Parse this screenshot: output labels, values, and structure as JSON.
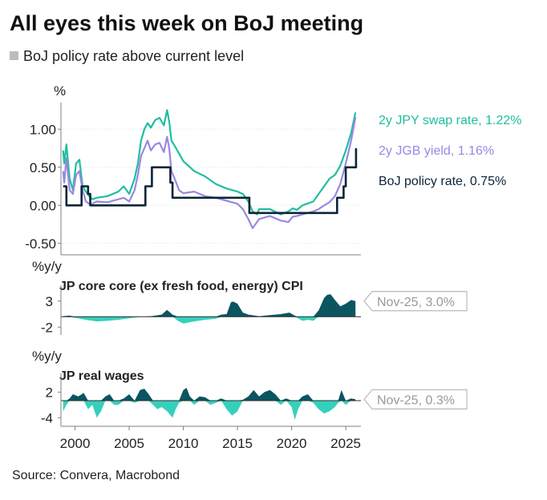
{
  "title": "All eyes this week on BoJ meeting",
  "subtitle": "BoJ policy rate above current level",
  "source": "Source: Convera, Macrobond",
  "colors": {
    "swap": "#1ebf9f",
    "jgb": "#9b87e3",
    "policy": "#0d2438",
    "area": "#0a5560",
    "area_neg": "#35d0bc",
    "shade": "#d3d3d3",
    "callout_border": "#b9b9b9",
    "callout_text": "#999999",
    "axis": "#7f7f7f"
  },
  "chart_data": [
    {
      "type": "line",
      "ylabel": "%",
      "ylim": [
        -0.65,
        1.35
      ],
      "yticks": [
        "1.00",
        "0.50",
        "0.00",
        "-0.50"
      ],
      "ytick_values": [
        1.0,
        0.5,
        0.0,
        -0.5
      ],
      "xlim": [
        1998.7,
        2026.4
      ],
      "series": [
        {
          "name": "2y JPY swap rate, 1.22%",
          "color_key": "swap",
          "x": [
            1998.9,
            1999.0,
            1999.2,
            1999.5,
            1999.8,
            2000.1,
            2000.4,
            2000.7,
            2001.0,
            2001.3,
            2001.6,
            2002,
            2003,
            2004,
            2004.5,
            2005,
            2005.5,
            2005.8,
            2006.1,
            2006.4,
            2006.7,
            2007.0,
            2007.4,
            2007.8,
            2008.2,
            2008.5,
            2008.7,
            2008.9,
            2009.2,
            2009.6,
            2010,
            2011,
            2012,
            2013,
            2014,
            2015,
            2015.5,
            2016.0,
            2016.4,
            2016.8,
            2017,
            2018,
            2019,
            2019.7,
            2020.1,
            2020.5,
            2021,
            2022.0,
            2022.5,
            2023.0,
            2023.5,
            2024.0,
            2024.5,
            2025.0,
            2025.5,
            2025.9
          ],
          "y": [
            0.72,
            0.55,
            0.8,
            0.35,
            0.2,
            0.55,
            0.6,
            0.25,
            0.18,
            0.12,
            0.08,
            0.1,
            0.12,
            0.18,
            0.25,
            0.15,
            0.35,
            0.55,
            0.85,
            1.0,
            1.08,
            1.02,
            1.12,
            1.15,
            1.05,
            1.25,
            1.1,
            0.85,
            0.78,
            0.68,
            0.58,
            0.45,
            0.38,
            0.28,
            0.22,
            0.18,
            0.15,
            0.05,
            -0.08,
            -0.12,
            -0.05,
            -0.05,
            -0.12,
            -0.08,
            -0.04,
            -0.06,
            0.0,
            0.05,
            0.15,
            0.25,
            0.35,
            0.4,
            0.52,
            0.72,
            0.95,
            1.22
          ]
        },
        {
          "name": "2y JGB yield, 1.16%",
          "color_key": "jgb",
          "x": [
            1998.9,
            1999.0,
            1999.2,
            1999.5,
            1999.8,
            2000.1,
            2000.4,
            2000.7,
            2001.0,
            2001.3,
            2001.6,
            2002,
            2003,
            2004,
            2004.5,
            2005,
            2005.5,
            2005.8,
            2006.1,
            2006.4,
            2006.7,
            2007.0,
            2007.4,
            2007.8,
            2008.2,
            2008.5,
            2008.7,
            2008.9,
            2009.2,
            2009.6,
            2010,
            2011,
            2012,
            2013,
            2014,
            2015,
            2015.5,
            2016.0,
            2016.4,
            2016.8,
            2017,
            2018,
            2019,
            2019.7,
            2020.1,
            2020.5,
            2021,
            2022.0,
            2022.5,
            2023.0,
            2023.5,
            2024.0,
            2024.5,
            2025.0,
            2025.5,
            2025.9
          ],
          "y": [
            0.45,
            0.3,
            0.62,
            0.2,
            0.15,
            0.4,
            0.45,
            0.2,
            0.05,
            0.02,
            0.02,
            0.05,
            0.04,
            0.08,
            0.1,
            0.05,
            0.2,
            0.4,
            0.65,
            0.75,
            0.85,
            0.72,
            0.8,
            0.82,
            0.7,
            0.9,
            0.75,
            0.45,
            0.35,
            0.2,
            0.16,
            0.18,
            0.12,
            0.1,
            0.06,
            0.02,
            -0.05,
            -0.18,
            -0.3,
            -0.22,
            -0.18,
            -0.14,
            -0.2,
            -0.22,
            -0.15,
            -0.14,
            -0.12,
            -0.08,
            -0.05,
            0.0,
            0.04,
            0.12,
            0.28,
            0.55,
            0.85,
            1.16
          ]
        },
        {
          "name": "BoJ policy rate, 0.75%",
          "color_key": "policy",
          "step": true,
          "x": [
            1998.9,
            1999.2,
            2000.6,
            2001.2,
            2001.4,
            2001.8,
            2006.5,
            2007.1,
            2008.8,
            2009.0,
            2015.9,
            2016.1,
            2024.2,
            2024.5,
            2024.8,
            2025.0,
            2025.85,
            2025.95
          ],
          "y": [
            0.25,
            0.0,
            0.25,
            0.15,
            0.0,
            0.0,
            0.25,
            0.5,
            0.3,
            0.1,
            0.1,
            -0.1,
            0.1,
            0.1,
            0.25,
            0.5,
            0.5,
            0.75
          ]
        }
      ],
      "shaded_region": {
        "from": 0.75,
        "to": 1.35,
        "label": "BoJ policy rate above current level"
      }
    },
    {
      "type": "area",
      "title": "JP core core (ex fresh food, energy) CPI",
      "ylabel": "%y/y",
      "ylim": [
        -3.5,
        4.5
      ],
      "yticks": [
        "3",
        "-2"
      ],
      "ytick_values": [
        3,
        -2
      ],
      "baseline": 0,
      "callout": "Nov-25, 3.0%",
      "x": [
        1998.9,
        1999.5,
        2000,
        2001,
        2002,
        2003,
        2004,
        2005,
        2006,
        2007,
        2008,
        2008.5,
        2009,
        2009.5,
        2010,
        2011,
        2012,
        2013,
        2013.5,
        2014,
        2014.4,
        2014.6,
        2015,
        2015.5,
        2016,
        2017,
        2018,
        2019,
        2019.8,
        2020.2,
        2020.5,
        2021,
        2021.5,
        2022,
        2022.5,
        2023,
        2023.3,
        2023.6,
        2024,
        2024.5,
        2025,
        2025.5,
        2025.9
      ],
      "values": [
        0.1,
        0.2,
        -0.2,
        -0.6,
        -0.9,
        -0.8,
        -0.6,
        -0.3,
        0.0,
        0.1,
        0.4,
        1.3,
        0.4,
        -0.8,
        -1.3,
        -0.9,
        -0.6,
        -0.4,
        0.4,
        0.5,
        2.8,
        2.9,
        2.5,
        0.8,
        0.4,
        0.1,
        0.3,
        0.5,
        0.8,
        0.3,
        -0.2,
        -0.8,
        -0.6,
        -0.8,
        1.2,
        3.6,
        4.2,
        4.3,
        3.2,
        2.0,
        2.5,
        3.2,
        3.0
      ]
    },
    {
      "type": "area",
      "title": "JP real wages",
      "ylabel": "%y/y",
      "ylim": [
        -6.0,
        4.5
      ],
      "yticks": [
        "2",
        "-4"
      ],
      "ytick_values": [
        2,
        -4
      ],
      "baseline": 0,
      "callout": "Nov-25, 0.3%",
      "x": [
        1998.9,
        1999.2,
        1999.5,
        1999.8,
        2000.3,
        2000.8,
        2001.2,
        2001.6,
        2002,
        2002.4,
        2002.8,
        2003.2,
        2003.6,
        2004,
        2004.5,
        2005,
        2005.5,
        2006,
        2006.4,
        2006.8,
        2007.2,
        2007.6,
        2008,
        2008.5,
        2009,
        2009.3,
        2009.6,
        2010,
        2010.3,
        2010.6,
        2011,
        2011.5,
        2012,
        2012.5,
        2013,
        2013.5,
        2014,
        2014.5,
        2015,
        2015.5,
        2016,
        2016.5,
        2017,
        2017.5,
        2018,
        2018.5,
        2019,
        2019.5,
        2020,
        2020.3,
        2020.6,
        2021,
        2021.5,
        2022,
        2022.5,
        2023,
        2023.5,
        2024,
        2024.3,
        2024.6,
        2025,
        2025.5,
        2025.9
      ],
      "values": [
        -2.5,
        -1.0,
        0.5,
        1.5,
        1.0,
        1.8,
        -2.0,
        -1.0,
        -4.0,
        -2.5,
        1.0,
        1.5,
        -1.0,
        -1.0,
        0.5,
        1.5,
        -0.5,
        2.5,
        2.8,
        1.5,
        -1.0,
        -2.0,
        -1.5,
        -2.5,
        -4.0,
        -2.0,
        -0.5,
        2.5,
        3.0,
        1.0,
        -1.0,
        1.0,
        0.8,
        -1.0,
        -0.5,
        0.5,
        -2.0,
        -3.5,
        -2.5,
        0.2,
        1.0,
        2.5,
        1.0,
        2.0,
        2.5,
        1.5,
        -1.0,
        0.5,
        -1.5,
        -4.5,
        -2.0,
        1.0,
        1.5,
        -0.5,
        -2.0,
        -3.0,
        -2.5,
        -1.5,
        -0.5,
        2.5,
        -1.0,
        0.5,
        0.3
      ]
    }
  ],
  "x_axis": {
    "ticks": [
      "2000",
      "2005",
      "2010",
      "2015",
      "2020",
      "2025"
    ],
    "tick_values": [
      2000,
      2005,
      2010,
      2015,
      2020,
      2025
    ]
  }
}
